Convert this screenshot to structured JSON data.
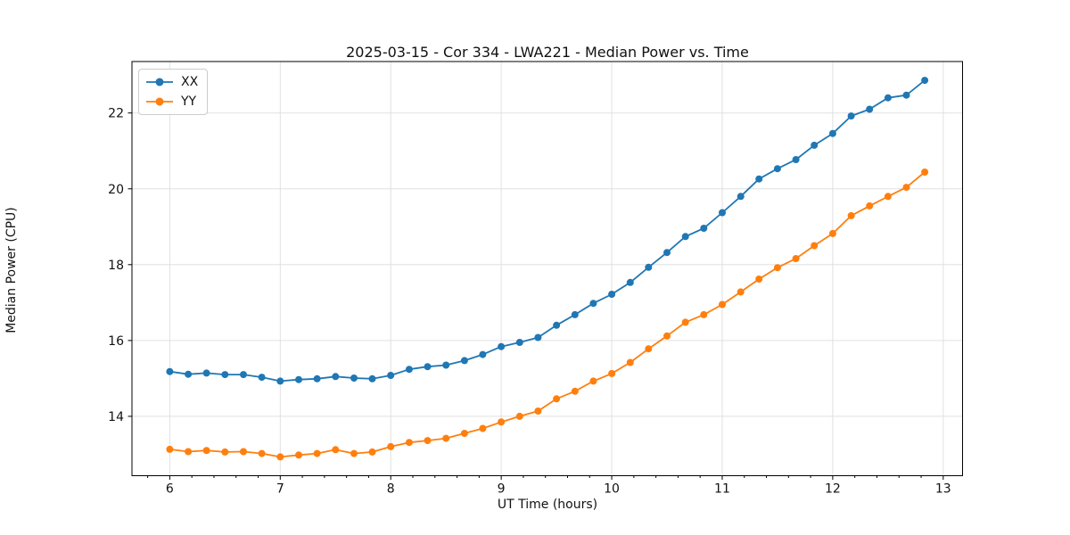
{
  "chart_data": {
    "type": "line",
    "title": "2025-03-15 - Cor 334 - LWA221 - Median Power vs. Time",
    "xlabel": "UT Time (hours)",
    "ylabel": "Median Power (CPU)",
    "x": [
      6.0,
      6.167,
      6.333,
      6.5,
      6.667,
      6.833,
      7.0,
      7.167,
      7.333,
      7.5,
      7.667,
      7.833,
      8.0,
      8.167,
      8.333,
      8.5,
      8.667,
      8.833,
      9.0,
      9.167,
      9.333,
      9.5,
      9.667,
      9.833,
      10.0,
      10.167,
      10.333,
      10.5,
      10.667,
      10.833,
      11.0,
      11.167,
      11.333,
      11.5,
      11.667,
      11.833,
      12.0,
      12.167,
      12.333,
      12.5,
      12.667,
      12.833
    ],
    "series": [
      {
        "name": "XX",
        "color": "#1f77b4",
        "values": [
          15.18,
          15.11,
          15.14,
          15.1,
          15.1,
          15.03,
          14.93,
          14.97,
          14.99,
          15.05,
          15.01,
          14.99,
          15.08,
          15.24,
          15.31,
          15.35,
          15.47,
          15.63,
          15.84,
          15.95,
          16.08,
          16.4,
          16.68,
          16.98,
          17.22,
          17.53,
          17.93,
          18.32,
          18.74,
          18.96,
          19.37,
          19.8,
          20.26,
          20.53,
          20.77,
          21.15,
          21.46,
          21.92,
          22.1,
          22.4,
          22.47,
          22.86
        ]
      },
      {
        "name": "YY",
        "color": "#ff7f0e",
        "values": [
          13.13,
          13.07,
          13.1,
          13.06,
          13.07,
          13.02,
          12.93,
          12.98,
          13.02,
          13.12,
          13.02,
          13.06,
          13.2,
          13.31,
          13.36,
          13.42,
          13.55,
          13.68,
          13.85,
          14.0,
          14.14,
          14.46,
          14.66,
          14.93,
          15.13,
          15.42,
          15.78,
          16.12,
          16.48,
          16.68,
          16.95,
          17.28,
          17.62,
          17.92,
          18.16,
          18.5,
          18.82,
          19.29,
          19.55,
          19.8,
          20.04,
          20.44
        ]
      }
    ],
    "marker": "o",
    "xlim": [
      5.658,
      13.175
    ],
    "ylim": [
      12.434,
      23.357
    ],
    "xticks": [
      6,
      7,
      8,
      9,
      10,
      11,
      12,
      13
    ],
    "yticks": [
      14,
      16,
      18,
      20,
      22
    ],
    "x_minor_step": 0.2,
    "grid": true,
    "grid_color": "#e0e0e0",
    "spine_color": "#000000",
    "legend_position": "upper-left"
  }
}
